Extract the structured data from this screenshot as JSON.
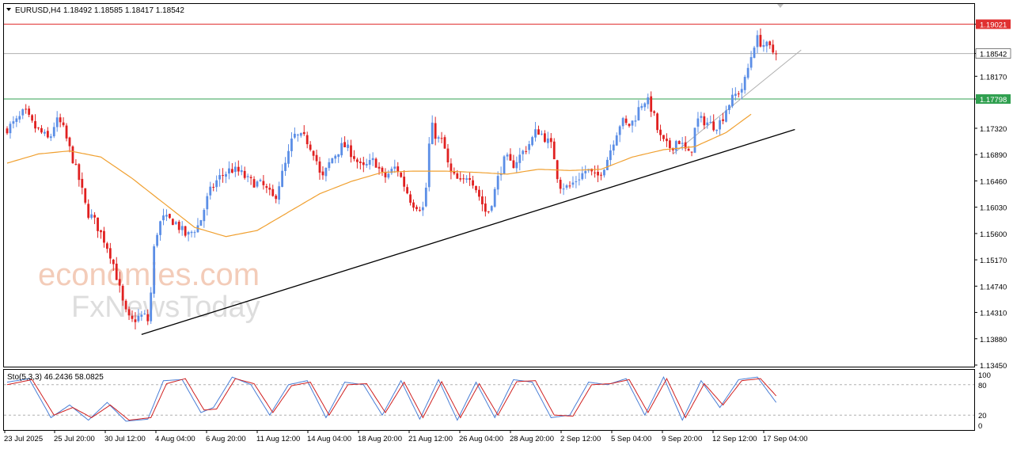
{
  "header": {
    "symbol": "EURUSD,H4",
    "ohlc": "1.18492 1.18585 1.18417 1.18542"
  },
  "watermark": {
    "line1": "economies.com",
    "line2": "FxNewsToday"
  },
  "colors": {
    "bull": "#5b8ee6",
    "bear": "#e02020",
    "ma": "#f0a030",
    "resistance": "#e03030",
    "support": "#30a050",
    "current": "#b0b0b0",
    "trend": "#000000",
    "stoch_main": "#4a7fd6",
    "stoch_signal": "#d02020"
  },
  "chart_data": [
    {
      "type": "candlestick",
      "title": "EURUSD,H4",
      "ylim": [
        1.1345,
        1.193
      ],
      "y_ticks": [
        "1.19021",
        "1.18542",
        "1.18170",
        "1.17798",
        "1.17320",
        "1.16890",
        "1.16460",
        "1.16030",
        "1.15600",
        "1.15170",
        "1.14740",
        "1.14310",
        "1.13880",
        "1.13450"
      ],
      "x_ticks": [
        "23 Jul 2025",
        "25 Jul 20:00",
        "30 Jul 12:00",
        "4 Aug 04:00",
        "6 Aug 20:00",
        "11 Aug 12:00",
        "14 Aug 04:00",
        "18 Aug 20:00",
        "21 Aug 12:00",
        "26 Aug 04:00",
        "28 Aug 20:00",
        "2 Sep 12:00",
        "5 Sep 04:00",
        "9 Sep 20:00",
        "12 Sep 12:00",
        "17 Sep 04:00"
      ],
      "price_path": [
        [
          0,
          1.173
        ],
        [
          4,
          1.1745
        ],
        [
          6,
          1.176
        ],
        [
          9,
          1.1735
        ],
        [
          12,
          1.1722
        ],
        [
          14,
          1.1712
        ],
        [
          16,
          1.1745
        ],
        [
          18,
          1.1738
        ],
        [
          21,
          1.169
        ],
        [
          24,
          1.164
        ],
        [
          26,
          1.1595
        ],
        [
          28,
          1.1585
        ],
        [
          32,
          1.1545
        ],
        [
          34,
          1.152
        ],
        [
          36,
          1.148
        ],
        [
          38,
          1.1435
        ],
        [
          40,
          1.1415
        ],
        [
          43,
          1.1425
        ],
        [
          45,
          1.1425
        ],
        [
          46,
          1.141
        ],
        [
          47,
          1.1515
        ],
        [
          48,
          1.1555
        ],
        [
          50,
          1.1585
        ],
        [
          54,
          1.158
        ],
        [
          58,
          1.1555
        ],
        [
          62,
          1.1575
        ],
        [
          65,
          1.1625
        ],
        [
          68,
          1.165
        ],
        [
          72,
          1.1665
        ],
        [
          75,
          1.166
        ],
        [
          78,
          1.1645
        ],
        [
          82,
          1.164
        ],
        [
          86,
          1.1615
        ],
        [
          88,
          1.165
        ],
        [
          90,
          1.168
        ],
        [
          92,
          1.172
        ],
        [
          96,
          1.1715
        ],
        [
          99,
          1.169
        ],
        [
          101,
          1.1645
        ],
        [
          104,
          1.168
        ],
        [
          108,
          1.1705
        ],
        [
          111,
          1.169
        ],
        [
          114,
          1.1665
        ],
        [
          118,
          1.168
        ],
        [
          121,
          1.165
        ],
        [
          125,
          1.167
        ],
        [
          127,
          1.1645
        ],
        [
          130,
          1.161
        ],
        [
          134,
          1.16
        ],
        [
          136,
          1.174
        ],
        [
          138,
          1.1715
        ],
        [
          140,
          1.171
        ],
        [
          142,
          1.166
        ],
        [
          146,
          1.164
        ],
        [
          148,
          1.166
        ],
        [
          150,
          1.164
        ],
        [
          152,
          1.1615
        ],
        [
          154,
          1.159
        ],
        [
          156,
          1.162
        ],
        [
          158,
          1.166
        ],
        [
          160,
          1.1685
        ],
        [
          162,
          1.167
        ],
        [
          165,
          1.169
        ],
        [
          168,
          1.171
        ],
        [
          170,
          1.173
        ],
        [
          172,
          1.172
        ],
        [
          175,
          1.17
        ],
        [
          177,
          1.164
        ],
        [
          180,
          1.1635
        ],
        [
          183,
          1.165
        ],
        [
          186,
          1.1665
        ],
        [
          189,
          1.165
        ],
        [
          192,
          1.1675
        ],
        [
          195,
          1.172
        ],
        [
          197,
          1.1745
        ],
        [
          199,
          1.1735
        ],
        [
          201,
          1.1745
        ],
        [
          203,
          1.177
        ],
        [
          205,
          1.178
        ],
        [
          207,
          1.176
        ],
        [
          209,
          1.172
        ],
        [
          211,
          1.1705
        ],
        [
          213,
          1.17
        ],
        [
          215,
          1.1715
        ],
        [
          217,
          1.17
        ],
        [
          219,
          1.1685
        ],
        [
          221,
          1.1745
        ],
        [
          223,
          1.1745
        ],
        [
          225,
          1.174
        ],
        [
          227,
          1.1735
        ],
        [
          229,
          1.1745
        ],
        [
          231,
          1.177
        ],
        [
          234,
          1.179
        ],
        [
          236,
          1.18
        ],
        [
          238,
          1.184
        ],
        [
          240,
          1.188
        ],
        [
          242,
          1.187
        ],
        [
          244,
          1.1865
        ],
        [
          246,
          1.1854
        ]
      ],
      "ma_path": [
        [
          0,
          1.1675
        ],
        [
          10,
          1.169
        ],
        [
          20,
          1.1695
        ],
        [
          30,
          1.1685
        ],
        [
          40,
          1.165
        ],
        [
          50,
          1.161
        ],
        [
          60,
          1.157
        ],
        [
          70,
          1.1555
        ],
        [
          80,
          1.1565
        ],
        [
          90,
          1.1595
        ],
        [
          100,
          1.1625
        ],
        [
          110,
          1.1645
        ],
        [
          120,
          1.166
        ],
        [
          130,
          1.1662
        ],
        [
          140,
          1.1662
        ],
        [
          150,
          1.166
        ],
        [
          160,
          1.1657
        ],
        [
          170,
          1.1665
        ],
        [
          180,
          1.1663
        ],
        [
          190,
          1.1665
        ],
        [
          200,
          1.1685
        ],
        [
          210,
          1.1697
        ],
        [
          220,
          1.1702
        ],
        [
          230,
          1.1725
        ],
        [
          238,
          1.1755
        ]
      ],
      "levels": [
        {
          "label": "1.19021",
          "value": 1.19021,
          "role": "resistance"
        },
        {
          "label": "1.18542",
          "value": 1.18542,
          "role": "current"
        },
        {
          "label": "1.17798",
          "value": 1.17798,
          "role": "support"
        }
      ],
      "trendlines": [
        {
          "from": [
            43,
            1.1395
          ],
          "to": [
            252,
            1.173
          ],
          "color": "trend"
        },
        {
          "from": [
            213,
            1.169
          ],
          "to": [
            254,
            1.186
          ],
          "color": "current"
        }
      ]
    },
    {
      "type": "line",
      "title": "Sto(5,3,3) 46.2436 58.0825",
      "ylim": [
        0,
        100
      ],
      "y_ticks": [
        "100",
        "80",
        "20",
        "0"
      ],
      "levels": [
        80,
        20
      ],
      "series": [
        {
          "name": "main",
          "cycles": [
            [
              0,
              85
            ],
            [
              7,
              92
            ],
            [
              14,
              15
            ],
            [
              20,
              40
            ],
            [
              26,
              10
            ],
            [
              32,
              45
            ],
            [
              38,
              8
            ],
            [
              45,
              12
            ],
            [
              50,
              88
            ],
            [
              56,
              90
            ],
            [
              62,
              25
            ],
            [
              66,
              35
            ],
            [
              72,
              95
            ],
            [
              78,
              80
            ],
            [
              84,
              20
            ],
            [
              90,
              80
            ],
            [
              96,
              88
            ],
            [
              102,
              15
            ],
            [
              108,
              85
            ],
            [
              114,
              80
            ],
            [
              120,
              20
            ],
            [
              126,
              88
            ],
            [
              132,
              12
            ],
            [
              138,
              90
            ],
            [
              144,
              10
            ],
            [
              150,
              85
            ],
            [
              156,
              15
            ],
            [
              162,
              90
            ],
            [
              168,
              85
            ],
            [
              174,
              15
            ],
            [
              180,
              20
            ],
            [
              186,
              85
            ],
            [
              192,
              80
            ],
            [
              198,
              92
            ],
            [
              204,
              20
            ],
            [
              210,
              95
            ],
            [
              216,
              10
            ],
            [
              222,
              88
            ],
            [
              228,
              35
            ],
            [
              234,
              90
            ],
            [
              240,
              95
            ],
            [
              246,
              45
            ]
          ]
        },
        {
          "name": "signal",
          "cycles": [
            [
              0,
              80
            ],
            [
              8,
              90
            ],
            [
              15,
              20
            ],
            [
              21,
              35
            ],
            [
              27,
              15
            ],
            [
              33,
              40
            ],
            [
              39,
              10
            ],
            [
              46,
              15
            ],
            [
              51,
              82
            ],
            [
              57,
              92
            ],
            [
              63,
              30
            ],
            [
              67,
              32
            ],
            [
              73,
              92
            ],
            [
              79,
              82
            ],
            [
              85,
              25
            ],
            [
              91,
              78
            ],
            [
              97,
              85
            ],
            [
              103,
              20
            ],
            [
              109,
              80
            ],
            [
              115,
              82
            ],
            [
              121,
              25
            ],
            [
              127,
              85
            ],
            [
              133,
              15
            ],
            [
              139,
              86
            ],
            [
              145,
              15
            ],
            [
              151,
              82
            ],
            [
              157,
              20
            ],
            [
              163,
              86
            ],
            [
              169,
              88
            ],
            [
              175,
              20
            ],
            [
              181,
              18
            ],
            [
              187,
              80
            ],
            [
              193,
              82
            ],
            [
              199,
              90
            ],
            [
              205,
              25
            ],
            [
              211,
              92
            ],
            [
              217,
              15
            ],
            [
              223,
              82
            ],
            [
              229,
              40
            ],
            [
              235,
              88
            ],
            [
              241,
              92
            ],
            [
              246,
              58
            ]
          ]
        }
      ]
    }
  ]
}
